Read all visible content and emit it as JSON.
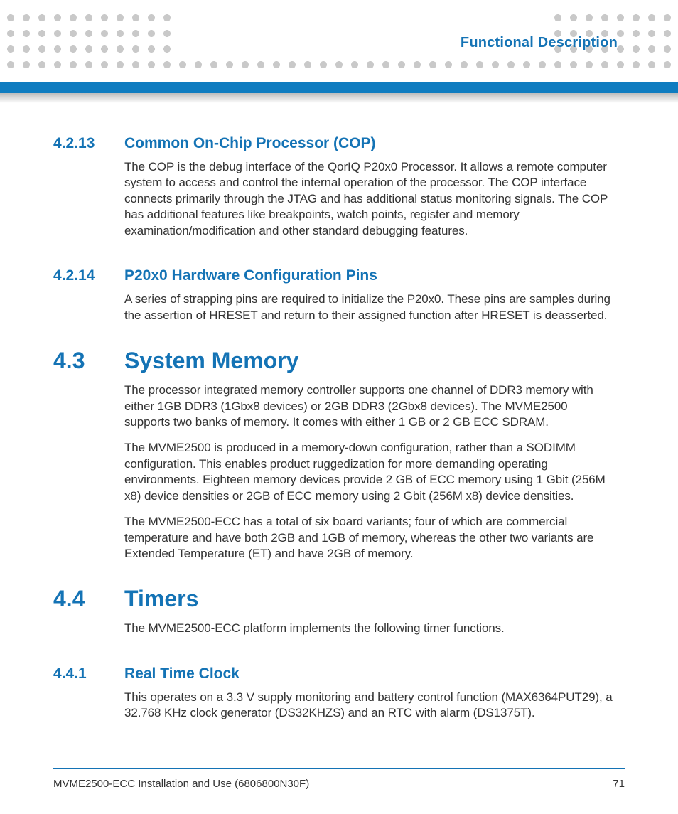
{
  "colors": {
    "brand_blue": "#1473b5",
    "bar_blue": "#0f7cc0",
    "dot_grey": "#c9c9c9",
    "text": "#333333",
    "bg": "#ffffff"
  },
  "typography": {
    "chapter_title_pt": 20,
    "h2_pt": 32,
    "h3_pt": 21,
    "body_pt": 17,
    "footer_pt": 15,
    "weight_heading": 700,
    "weight_body": 400
  },
  "header": {
    "chapter_title": "Functional Description"
  },
  "sections": [
    {
      "level": 3,
      "number": "4.2.13",
      "title": "Common On-Chip Processor (COP)",
      "paragraphs": [
        "The COP is the debug interface of the QorIQ P20x0 Processor. It allows a remote computer system to access and control the internal operation of the processor. The COP interface connects primarily through the JTAG and has additional status monitoring signals. The COP has additional features like breakpoints, watch points, register and memory examination/modification and other standard debugging features."
      ]
    },
    {
      "level": 3,
      "number": "4.2.14",
      "title": "P20x0 Hardware Configuration Pins",
      "paragraphs": [
        "A series of strapping pins are required to initialize the P20x0. These pins are samples during the assertion of HRESET and return to their assigned function after HRESET is deasserted."
      ]
    },
    {
      "level": 2,
      "number": "4.3",
      "title": "System Memory",
      "paragraphs": [
        "The processor integrated memory controller supports one channel of DDR3 memory with either 1GB DDR3 (1Gbx8 devices) or 2GB DDR3 (2Gbx8 devices). The MVME2500 supports two banks of memory. It comes with either 1 GB or 2 GB ECC SDRAM.",
        "The MVME2500 is produced in a memory-down configuration, rather than a SODIMM configuration. This enables product ruggedization for more demanding operating environments. Eighteen memory devices provide 2 GB of ECC memory using 1 Gbit (256M x8) device densities or 2GB of ECC memory using 2 Gbit (256M x8) device densities.",
        "The MVME2500-ECC has a total of six board variants; four of which are commercial temperature and have both 2GB and 1GB of memory, whereas the other two variants are Extended Temperature (ET) and have 2GB of memory."
      ]
    },
    {
      "level": 2,
      "number": "4.4",
      "title": "Timers",
      "paragraphs": [
        "The MVME2500-ECC platform implements the following timer functions."
      ]
    },
    {
      "level": 3,
      "number": "4.4.1",
      "title": "Real Time Clock",
      "paragraphs": [
        "This operates on a 3.3 V supply monitoring and battery control function (MAX6364PUT29), a 32.768 KHz clock generator (DS32KHZS) and an RTC with alarm (DS1375T)."
      ]
    }
  ],
  "footer": {
    "doc_title": "MVME2500-ECC Installation and Use (6806800N30F)",
    "page_number": "71"
  }
}
